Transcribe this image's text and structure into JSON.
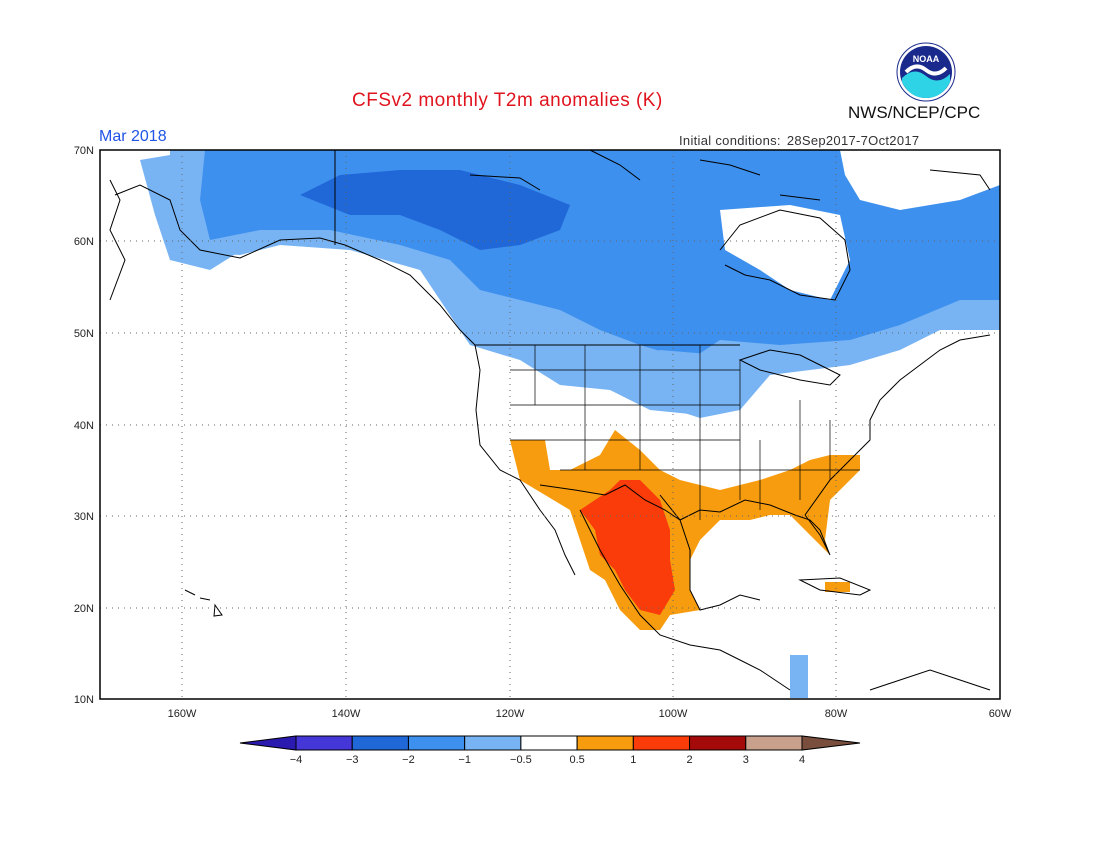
{
  "header": {
    "title": "CFSv2 monthly T2m anomalies (K)",
    "agency": "NWS/NCEP/CPC",
    "logo_text": "NOAA",
    "month": "Mar 2018",
    "initial_conditions_label": "Initial conditions:",
    "initial_conditions_value": "28Sep2017-7Oct2017"
  },
  "map": {
    "lon_range": [
      -172,
      -60
    ],
    "lat_range": [
      10,
      70
    ],
    "lat_labels": [
      "70N",
      "60N",
      "50N",
      "40N",
      "30N",
      "20N",
      "10N"
    ],
    "lon_labels": [
      "160W",
      "140W",
      "120W",
      "100W",
      "80W",
      "60W"
    ],
    "gridlines": "dotted"
  },
  "colorbar": {
    "levels": [
      "-4",
      "-3",
      "-2",
      "-1",
      "-0.5",
      "0.5",
      "1",
      "2",
      "3",
      "4"
    ],
    "colors": [
      "#2b1ab0",
      "#4536d8",
      "#2067d8",
      "#3e90ee",
      "#78b4f4",
      "#ffffff",
      "#f79c0e",
      "#fa3c0a",
      "#a50a0a",
      "#c8a08c",
      "#7a4e3c"
    ]
  },
  "anomaly_regions": [
    {
      "name": "canada-light-blue",
      "category": "-1 to -0.5",
      "color": "#78b4f4"
    },
    {
      "name": "canada-mid-blue",
      "category": "-2 to -1",
      "color": "#3e90ee"
    },
    {
      "name": "canada-dark-blue",
      "category": "-3 to -2",
      "color": "#2067d8"
    },
    {
      "name": "southwest-orange",
      "category": "0.5 to 1",
      "color": "#f79c0e"
    },
    {
      "name": "mexico-red",
      "category": "1 to 2",
      "color": "#fa3c0a"
    },
    {
      "name": "southeast-orange",
      "category": "0.5 to 1",
      "color": "#f79c0e"
    }
  ]
}
